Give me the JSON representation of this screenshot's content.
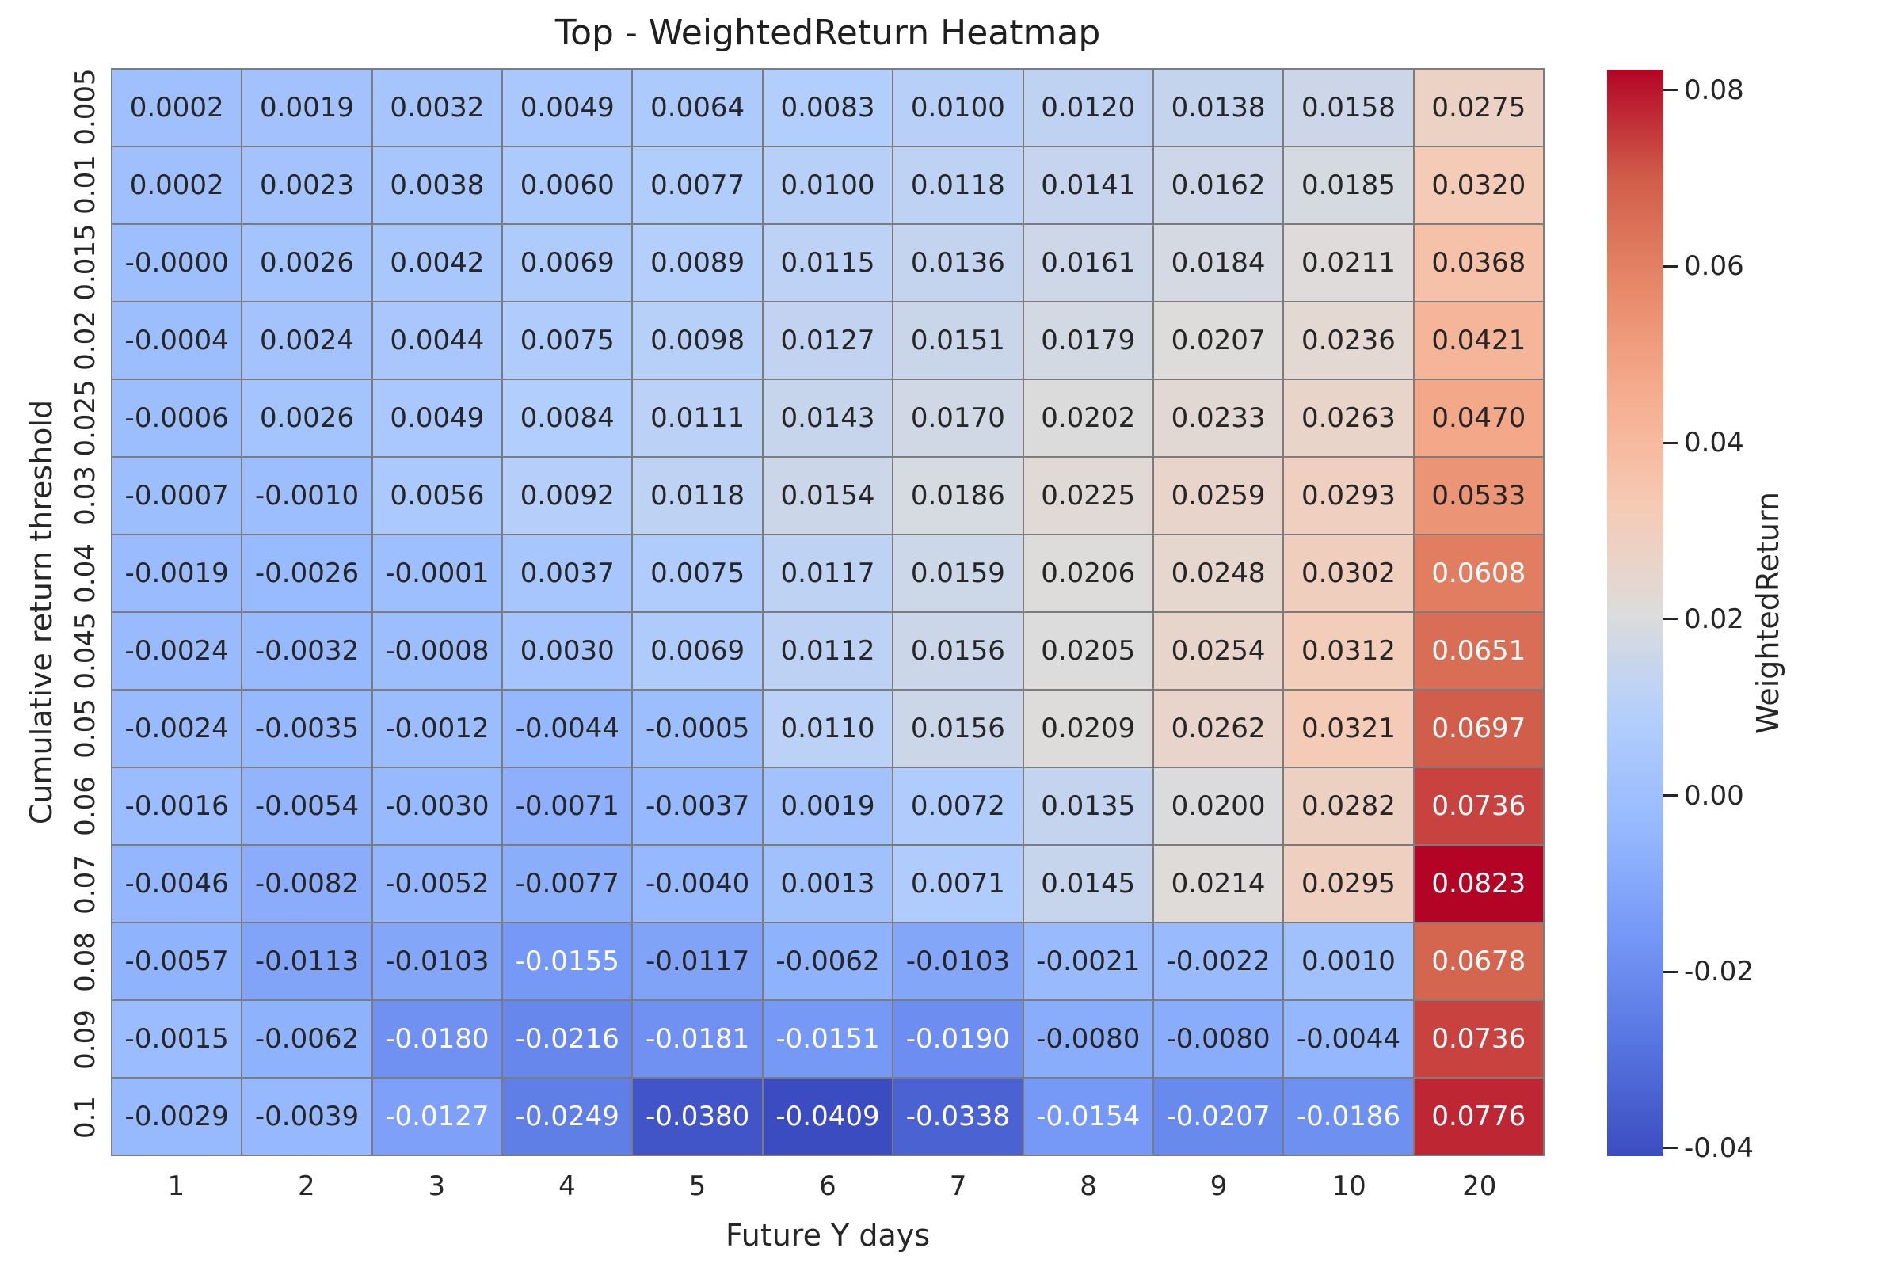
{
  "title": "Top - WeightedReturn Heatmap",
  "x_axis_label": "Future Y days",
  "y_axis_label": "Cumulative return threshold",
  "colorbar": {
    "label": "WeightedReturn",
    "ticks": [
      {
        "label": "0.08",
        "value": 0.08
      },
      {
        "label": "0.06",
        "value": 0.06
      },
      {
        "label": "0.04",
        "value": 0.04
      },
      {
        "label": "0.02",
        "value": 0.02
      },
      {
        "label": "0.00",
        "value": 0.0
      },
      {
        "label": "-0.02",
        "value": -0.02
      },
      {
        "label": "-0.04",
        "value": -0.04
      }
    ]
  },
  "colors": {
    "background": "#ffffff",
    "grid_line": "#7c7c7c",
    "text": "#262626",
    "annot_dark_text": "#262626",
    "annot_light_text": "#ffffff",
    "colormap_low": "#3b4cc0",
    "colormap_mid": "#dddcdb",
    "colormap_high": "#b40426"
  },
  "chart_data": {
    "type": "heatmap",
    "title": "Top - WeightedReturn Heatmap",
    "xlabel": "Future Y days",
    "ylabel": "Cumulative return threshold",
    "colormap": "coolwarm",
    "vmin": -0.0409,
    "vmax": 0.0823,
    "legend_position": "right-colorbar",
    "x": [
      "1",
      "2",
      "3",
      "4",
      "5",
      "6",
      "7",
      "8",
      "9",
      "10",
      "20"
    ],
    "y": [
      "0.005",
      "0.01",
      "0.015",
      "0.02",
      "0.025",
      "0.03",
      "0.04",
      "0.045",
      "0.05",
      "0.06",
      "0.07",
      "0.08",
      "0.09",
      "0.1"
    ],
    "values": [
      [
        "0.0002",
        "0.0019",
        "0.0032",
        "0.0049",
        "0.0064",
        "0.0083",
        "0.0100",
        "0.0120",
        "0.0138",
        "0.0158",
        "0.0275"
      ],
      [
        "0.0002",
        "0.0023",
        "0.0038",
        "0.0060",
        "0.0077",
        "0.0100",
        "0.0118",
        "0.0141",
        "0.0162",
        "0.0185",
        "0.0320"
      ],
      [
        "-0.0000",
        "0.0026",
        "0.0042",
        "0.0069",
        "0.0089",
        "0.0115",
        "0.0136",
        "0.0161",
        "0.0184",
        "0.0211",
        "0.0368"
      ],
      [
        "-0.0004",
        "0.0024",
        "0.0044",
        "0.0075",
        "0.0098",
        "0.0127",
        "0.0151",
        "0.0179",
        "0.0207",
        "0.0236",
        "0.0421"
      ],
      [
        "-0.0006",
        "0.0026",
        "0.0049",
        "0.0084",
        "0.0111",
        "0.0143",
        "0.0170",
        "0.0202",
        "0.0233",
        "0.0263",
        "0.0470"
      ],
      [
        "-0.0007",
        "-0.0010",
        "0.0056",
        "0.0092",
        "0.0118",
        "0.0154",
        "0.0186",
        "0.0225",
        "0.0259",
        "0.0293",
        "0.0533"
      ],
      [
        "-0.0019",
        "-0.0026",
        "-0.0001",
        "0.0037",
        "0.0075",
        "0.0117",
        "0.0159",
        "0.0206",
        "0.0248",
        "0.0302",
        "0.0608"
      ],
      [
        "-0.0024",
        "-0.0032",
        "-0.0008",
        "0.0030",
        "0.0069",
        "0.0112",
        "0.0156",
        "0.0205",
        "0.0254",
        "0.0312",
        "0.0651"
      ],
      [
        "-0.0024",
        "-0.0035",
        "-0.0012",
        "-0.0044",
        "-0.0005",
        "0.0110",
        "0.0156",
        "0.0209",
        "0.0262",
        "0.0321",
        "0.0697"
      ],
      [
        "-0.0016",
        "-0.0054",
        "-0.0030",
        "-0.0071",
        "-0.0037",
        "0.0019",
        "0.0072",
        "0.0135",
        "0.0200",
        "0.0282",
        "0.0736"
      ],
      [
        "-0.0046",
        "-0.0082",
        "-0.0052",
        "-0.0077",
        "-0.0040",
        "0.0013",
        "0.0071",
        "0.0145",
        "0.0214",
        "0.0295",
        "0.0823"
      ],
      [
        "-0.0057",
        "-0.0113",
        "-0.0103",
        "-0.0155",
        "-0.0117",
        "-0.0062",
        "-0.0103",
        "-0.0021",
        "-0.0022",
        "0.0010",
        "0.0678"
      ],
      [
        "-0.0015",
        "-0.0062",
        "-0.0180",
        "-0.0216",
        "-0.0181",
        "-0.0151",
        "-0.0190",
        "-0.0080",
        "-0.0080",
        "-0.0044",
        "0.0736"
      ],
      [
        "-0.0029",
        "-0.0039",
        "-0.0127",
        "-0.0249",
        "-0.0380",
        "-0.0409",
        "-0.0338",
        "-0.0154",
        "-0.0207",
        "-0.0186",
        "0.0776"
      ]
    ]
  }
}
